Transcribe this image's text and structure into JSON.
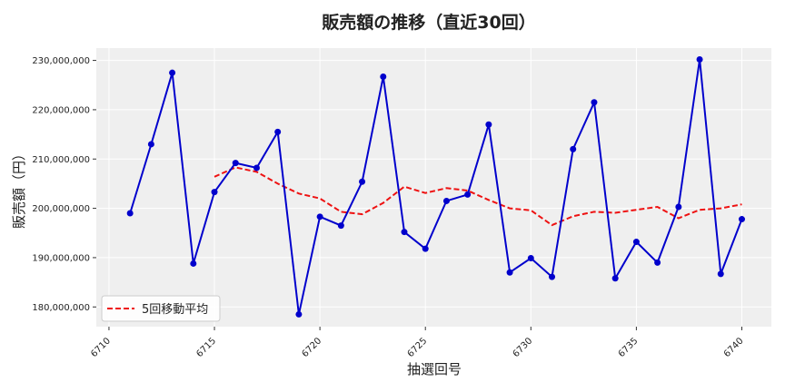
{
  "chart_data": {
    "type": "line",
    "title": "販売額の推移（直近30回）",
    "xlabel": "抽選回号",
    "ylabel": "販売額（円）",
    "xlim": [
      6709.4,
      6741.4
    ],
    "ylim": [
      176000000,
      232500000
    ],
    "xticks": [
      6710,
      6715,
      6720,
      6725,
      6730,
      6735,
      6740
    ],
    "yticks": [
      180000000,
      190000000,
      200000000,
      210000000,
      220000000,
      230000000
    ],
    "ytick_labels": [
      "180,000,000",
      "190,000,000",
      "200,000,000",
      "210,000,000",
      "220,000,000",
      "230,000,000"
    ],
    "grid": true,
    "legend": "lower-left",
    "x": [
      6711,
      6712,
      6713,
      6714,
      6715,
      6716,
      6717,
      6718,
      6719,
      6720,
      6721,
      6722,
      6723,
      6724,
      6725,
      6726,
      6727,
      6728,
      6729,
      6730,
      6731,
      6732,
      6733,
      6734,
      6735,
      6736,
      6737,
      6738,
      6739,
      6740
    ],
    "series": [
      {
        "name": "",
        "color": "#0000cc",
        "style": "solid-markers",
        "values": [
          199000000,
          213000000,
          227500000,
          188800000,
          203300000,
          209200000,
          208200000,
          215500000,
          178500000,
          198300000,
          196500000,
          205400000,
          226700000,
          195200000,
          191800000,
          201500000,
          202800000,
          217000000,
          187000000,
          189900000,
          186100000,
          212000000,
          221500000,
          185800000,
          193200000,
          189000000,
          200300000,
          230200000,
          186700000,
          197800000
        ]
      },
      {
        "name": "5回移動平均",
        "color": "#ee1111",
        "style": "dashed",
        "x": [
          6715,
          6716,
          6717,
          6718,
          6719,
          6720,
          6721,
          6722,
          6723,
          6724,
          6725,
          6726,
          6727,
          6728,
          6729,
          6730,
          6731,
          6732,
          6733,
          6734,
          6735,
          6736,
          6737,
          6738,
          6739,
          6740
        ],
        "values": [
          206400000,
          208300000,
          207400000,
          205000000,
          203000000,
          202000000,
          199300000,
          198800000,
          201100000,
          204400000,
          203100000,
          204100000,
          203600000,
          201700000,
          200000000,
          199600000,
          196600000,
          198400000,
          199300000,
          199100000,
          199700000,
          200300000,
          198000000,
          199700000,
          200000000,
          200800000
        ]
      }
    ]
  }
}
